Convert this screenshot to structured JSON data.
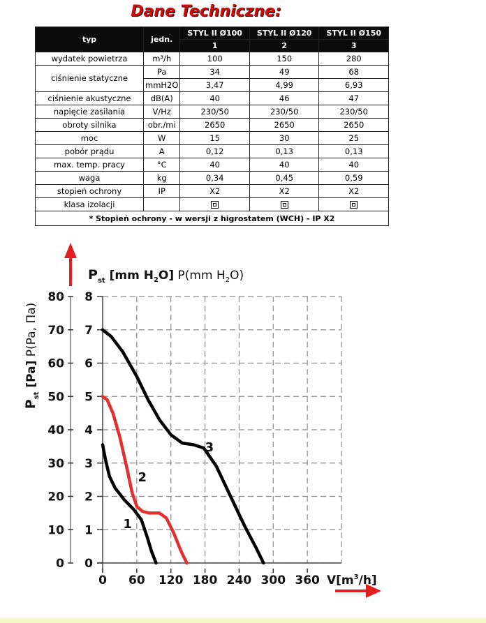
{
  "title": "Dane Techniczne:",
  "table": {
    "header": {
      "label": "typ",
      "unit": "jedn.",
      "models": [
        "STYL II Ø100",
        "STYL II Ø120",
        "STYL II Ø150"
      ],
      "numbers": [
        "1",
        "2",
        "3"
      ]
    },
    "rows": [
      {
        "label": "wydatek powietrza",
        "unit": "m³/h",
        "values": [
          "100",
          "150",
          "280"
        ]
      },
      {
        "label": "ciśnienie statyczne",
        "unit": "Pa",
        "values": [
          "34",
          "49",
          "68"
        ]
      },
      {
        "label": "",
        "unit": "mmH2O",
        "values": [
          "3,47",
          "4,99",
          "6,93"
        ]
      },
      {
        "label": "ciśnienie akustyczne",
        "unit": "dB(A)",
        "values": [
          "40",
          "46",
          "47"
        ]
      },
      {
        "label": "napięcie zasilania",
        "unit": "V/Hz",
        "values": [
          "230/50",
          "230/50",
          "230/50"
        ]
      },
      {
        "label": "obroty silnika",
        "unit": "obr./mi",
        "values": [
          "2650",
          "2650",
          "2650"
        ]
      },
      {
        "label": "moc",
        "unit": "W",
        "values": [
          "15",
          "30",
          "25"
        ]
      },
      {
        "label": "pobór prądu",
        "unit": "A",
        "values": [
          "0,12",
          "0,13",
          "0,13"
        ]
      },
      {
        "label": "max. temp. pracy",
        "unit": "°C",
        "values": [
          "40",
          "40",
          "40"
        ]
      },
      {
        "label": "waga",
        "unit": "kg",
        "values": [
          "0,34",
          "0,45",
          "0,59"
        ]
      },
      {
        "label": "stopień ochrony",
        "unit": "IP",
        "values": [
          "X2",
          "X2",
          "X2"
        ]
      },
      {
        "label": "klasa izolacji",
        "unit": "",
        "values": [
          "",
          "",
          ""
        ]
      }
    ],
    "note": "* Stopień ochrony - w wersji z higrostatem (WCH) - IP X2"
  },
  "chart_data": {
    "type": "line",
    "ylabel_left": "P",
    "ylabel_left_sub": "st",
    "ylabel_left_unit": "[Pa]",
    "ylabel_left_alt": "P(Pa, Па)",
    "ylabel_right_prefix": "P",
    "ylabel_right_sub": "st",
    "ylabel_right_unit": "[mm H",
    "ylabel_right_unit_sub": "2",
    "ylabel_right_unit_end": "O]",
    "ylabel_right_alt": "P(mm H",
    "ylabel_right_alt_sub": "2",
    "ylabel_right_alt_end": "O)",
    "xlabel": "V[m",
    "xlabel_sup": "3",
    "xlabel_end": "/h]",
    "x_ticks": [
      "0",
      "60",
      "120",
      "180",
      "240",
      "300",
      "360"
    ],
    "y_ticks_pa": [
      "0",
      "10",
      "20",
      "30",
      "40",
      "50",
      "60",
      "70",
      "80"
    ],
    "y_ticks_mm": [
      "0",
      "1",
      "2",
      "3",
      "4",
      "5",
      "6",
      "7",
      "8"
    ],
    "xlim": [
      0,
      420
    ],
    "ylim": [
      0,
      8
    ],
    "grid": true,
    "colors": {
      "black": "#000000",
      "red": "#e03030",
      "arrow": "#e02020"
    },
    "series": [
      {
        "name": "1",
        "color": "#000000",
        "points": [
          [
            0,
            3.55
          ],
          [
            5,
            3.1
          ],
          [
            12,
            2.6
          ],
          [
            22,
            2.25
          ],
          [
            38,
            1.9
          ],
          [
            55,
            1.6
          ],
          [
            68,
            1.3
          ],
          [
            78,
            0.8
          ],
          [
            86,
            0.35
          ],
          [
            94,
            0
          ]
        ]
      },
      {
        "name": "2",
        "color": "#e03030",
        "points": [
          [
            0,
            5.0
          ],
          [
            8,
            4.9
          ],
          [
            18,
            4.5
          ],
          [
            30,
            3.8
          ],
          [
            42,
            2.9
          ],
          [
            52,
            2.1
          ],
          [
            60,
            1.7
          ],
          [
            70,
            1.55
          ],
          [
            82,
            1.5
          ],
          [
            100,
            1.5
          ],
          [
            112,
            1.35
          ],
          [
            125,
            0.9
          ],
          [
            138,
            0.35
          ],
          [
            148,
            0
          ]
        ]
      },
      {
        "name": "3",
        "color": "#000000",
        "points": [
          [
            0,
            7.0
          ],
          [
            15,
            6.8
          ],
          [
            35,
            6.35
          ],
          [
            60,
            5.6
          ],
          [
            80,
            4.9
          ],
          [
            100,
            4.3
          ],
          [
            120,
            3.85
          ],
          [
            140,
            3.6
          ],
          [
            160,
            3.55
          ],
          [
            178,
            3.45
          ],
          [
            200,
            2.9
          ],
          [
            225,
            2.0
          ],
          [
            250,
            1.1
          ],
          [
            270,
            0.45
          ],
          [
            283,
            0
          ]
        ]
      }
    ]
  }
}
